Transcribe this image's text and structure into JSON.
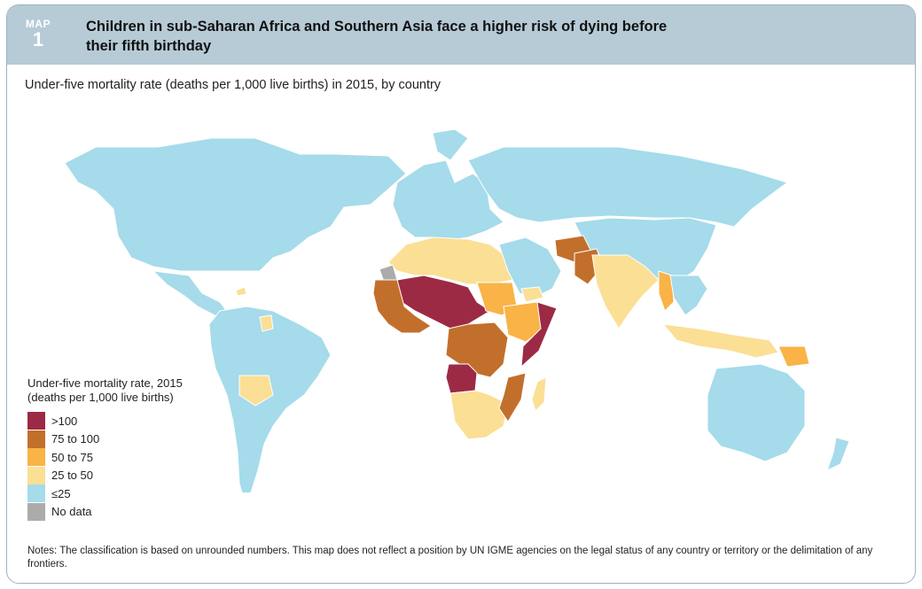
{
  "header": {
    "map_label": "MAP",
    "map_number": "1",
    "title_line1": "Children in sub-Saharan Africa and Southern Asia face a higher risk of dying before",
    "title_line2": "their fifth birthday"
  },
  "subtitle": "Under-five mortality rate (deaths per 1,000 live births) in 2015, by country",
  "legend": {
    "title_line1": "Under-five mortality rate, 2015",
    "title_line2": "(deaths per 1,000 live births)",
    "items": [
      {
        "label": ">100",
        "color": "#9c2a45"
      },
      {
        "label": "75 to 100",
        "color": "#c36f2c"
      },
      {
        "label": "50 to 75",
        "color": "#f9b346"
      },
      {
        "label": "25 to 50",
        "color": "#fbdf95"
      },
      {
        "label": "≤25",
        "color": "#a5dbea"
      },
      {
        "label": "No data",
        "color": "#ababab"
      }
    ]
  },
  "notes": "Notes: The classification is based on unrounded numbers. This map does not reflect a position by UN IGME agencies on the legal status of any country or territory or the delimitation of any frontiers.",
  "map_regions": [
    {
      "name": "North America",
      "class": "≤25"
    },
    {
      "name": "Central America",
      "class": "≤25"
    },
    {
      "name": "Haiti",
      "class": "25 to 50"
    },
    {
      "name": "South America",
      "class": "≤25"
    },
    {
      "name": "Bolivia",
      "class": "25 to 50"
    },
    {
      "name": "Guyana",
      "class": "25 to 50"
    },
    {
      "name": "Greenland",
      "class": "≤25"
    },
    {
      "name": "Europe",
      "class": "≤25"
    },
    {
      "name": "Russia",
      "class": "≤25"
    },
    {
      "name": "China",
      "class": "≤25"
    },
    {
      "name": "North Africa",
      "class": "25 to 50"
    },
    {
      "name": "Western Sahara",
      "class": "No data"
    },
    {
      "name": "Sahel",
      "class": ">100"
    },
    {
      "name": "West Africa",
      "class": "75 to 100"
    },
    {
      "name": "Sudan",
      "class": "50 to 75"
    },
    {
      "name": "Ethiopia",
      "class": "50 to 75"
    },
    {
      "name": "Somalia",
      "class": ">100"
    },
    {
      "name": "Central Africa",
      "class": "75 to 100"
    },
    {
      "name": "Angola",
      "class": ">100"
    },
    {
      "name": "Southern Africa",
      "class": "25 to 50"
    },
    {
      "name": "Mozambique",
      "class": "75 to 100"
    },
    {
      "name": "Madagascar",
      "class": "25 to 50"
    },
    {
      "name": "Arabian Peninsula",
      "class": "≤25"
    },
    {
      "name": "Yemen",
      "class": "25 to 50"
    },
    {
      "name": "Afghanistan",
      "class": "75 to 100"
    },
    {
      "name": "Pakistan",
      "class": "75 to 100"
    },
    {
      "name": "India",
      "class": "25 to 50"
    },
    {
      "name": "Myanmar",
      "class": "50 to 75"
    },
    {
      "name": "Southeast Asia",
      "class": "≤25"
    },
    {
      "name": "Indonesia",
      "class": "25 to 50"
    },
    {
      "name": "Papua New Guinea",
      "class": "50 to 75"
    },
    {
      "name": "Australia",
      "class": "≤25"
    },
    {
      "name": "New Zealand",
      "class": "≤25"
    }
  ]
}
